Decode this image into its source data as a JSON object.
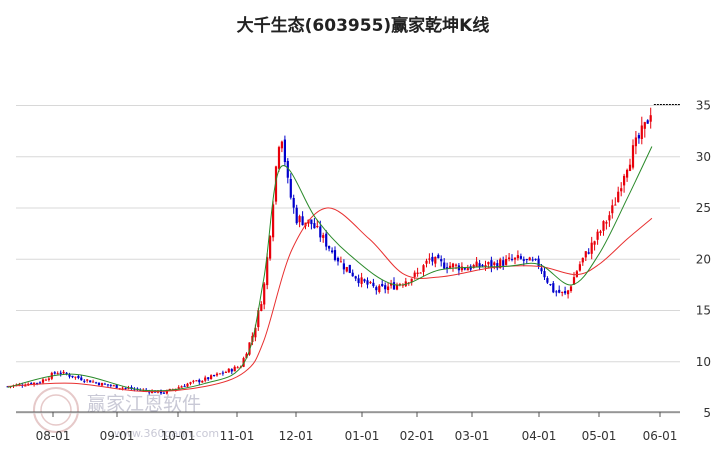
{
  "chart_data": {
    "type": "candlestick",
    "title": "大千生态(603955)赢家乾坤K线",
    "x_ticks": [
      "08-01",
      "09-01",
      "10-01",
      "11-01",
      "12-01",
      "01-01",
      "02-01",
      "03-01",
      "04-01",
      "05-01",
      "06-01"
    ],
    "y_ticks": [
      5,
      10,
      15,
      20,
      25,
      30,
      35
    ],
    "ylim": [
      5,
      36
    ],
    "grid": "horizontal",
    "colors": {
      "up": "#e8000b",
      "down": "#0000cc",
      "ma_green": "#2a8a2a",
      "ma_red": "#e83030",
      "grid": "#d8d8d8"
    },
    "last_close": 35,
    "approx_close_path": [
      [
        "07-10",
        7.6
      ],
      [
        "07-25",
        8.0
      ],
      [
        "08-03",
        9.0
      ],
      [
        "08-12",
        8.5
      ],
      [
        "08-25",
        7.8
      ],
      [
        "09-10",
        7.3
      ],
      [
        "09-25",
        7.0
      ],
      [
        "10-05",
        7.8
      ],
      [
        "10-15",
        8.3
      ],
      [
        "10-25",
        9.0
      ],
      [
        "11-03",
        9.6
      ],
      [
        "11-10",
        13.0
      ],
      [
        "11-15",
        17.0
      ],
      [
        "11-18",
        22.0
      ],
      [
        "11-22",
        30.0
      ],
      [
        "11-24",
        33.0
      ],
      [
        "11-28",
        27.0
      ],
      [
        "12-01",
        24.0
      ],
      [
        "12-08",
        23.5
      ],
      [
        "12-15",
        21.5
      ],
      [
        "12-22",
        19.5
      ],
      [
        "01-01",
        17.8
      ],
      [
        "01-10",
        17.0
      ],
      [
        "01-20",
        17.5
      ],
      [
        "02-01",
        18.5
      ],
      [
        "02-08",
        20.0
      ],
      [
        "02-15",
        19.5
      ],
      [
        "02-28",
        19.2
      ],
      [
        "03-10",
        19.5
      ],
      [
        "03-20",
        20.0
      ],
      [
        "04-01",
        19.5
      ],
      [
        "04-08",
        17.0
      ],
      [
        "04-15",
        16.5
      ],
      [
        "04-22",
        19.5
      ],
      [
        "05-01",
        22.5
      ],
      [
        "05-08",
        25.0
      ],
      [
        "05-14",
        29.0
      ],
      [
        "05-20",
        31.5
      ],
      [
        "05-24",
        33.0
      ],
      [
        "05-27",
        35.0
      ]
    ],
    "approx_ma_green": [
      [
        "07-10",
        7.5
      ],
      [
        "08-10",
        8.8
      ],
      [
        "09-15",
        7.2
      ],
      [
        "10-15",
        7.9
      ],
      [
        "11-05",
        10.0
      ],
      [
        "11-15",
        18.0
      ],
      [
        "11-24",
        29.0
      ],
      [
        "12-10",
        24.0
      ],
      [
        "12-25",
        20.5
      ],
      [
        "01-20",
        17.5
      ],
      [
        "02-15",
        19.0
      ],
      [
        "03-15",
        19.3
      ],
      [
        "04-01",
        19.5
      ],
      [
        "04-18",
        17.5
      ],
      [
        "05-01",
        20.5
      ],
      [
        "05-15",
        26.0
      ],
      [
        "05-27",
        31.0
      ]
    ],
    "approx_ma_red": [
      [
        "07-10",
        7.6
      ],
      [
        "08-10",
        7.9
      ],
      [
        "09-15",
        7.1
      ],
      [
        "10-15",
        7.6
      ],
      [
        "11-05",
        9.0
      ],
      [
        "11-15",
        12.0
      ],
      [
        "11-30",
        21.0
      ],
      [
        "12-15",
        25.0
      ],
      [
        "01-05",
        22.0
      ],
      [
        "01-25",
        18.5
      ],
      [
        "02-15",
        18.3
      ],
      [
        "03-10",
        19.2
      ],
      [
        "04-01",
        19.3
      ],
      [
        "04-20",
        18.5
      ],
      [
        "05-01",
        19.5
      ],
      [
        "05-15",
        22.0
      ],
      [
        "05-27",
        24.0
      ]
    ]
  },
  "watermark": {
    "text": "赢家江恩软件",
    "url": "www.360gann.com"
  }
}
